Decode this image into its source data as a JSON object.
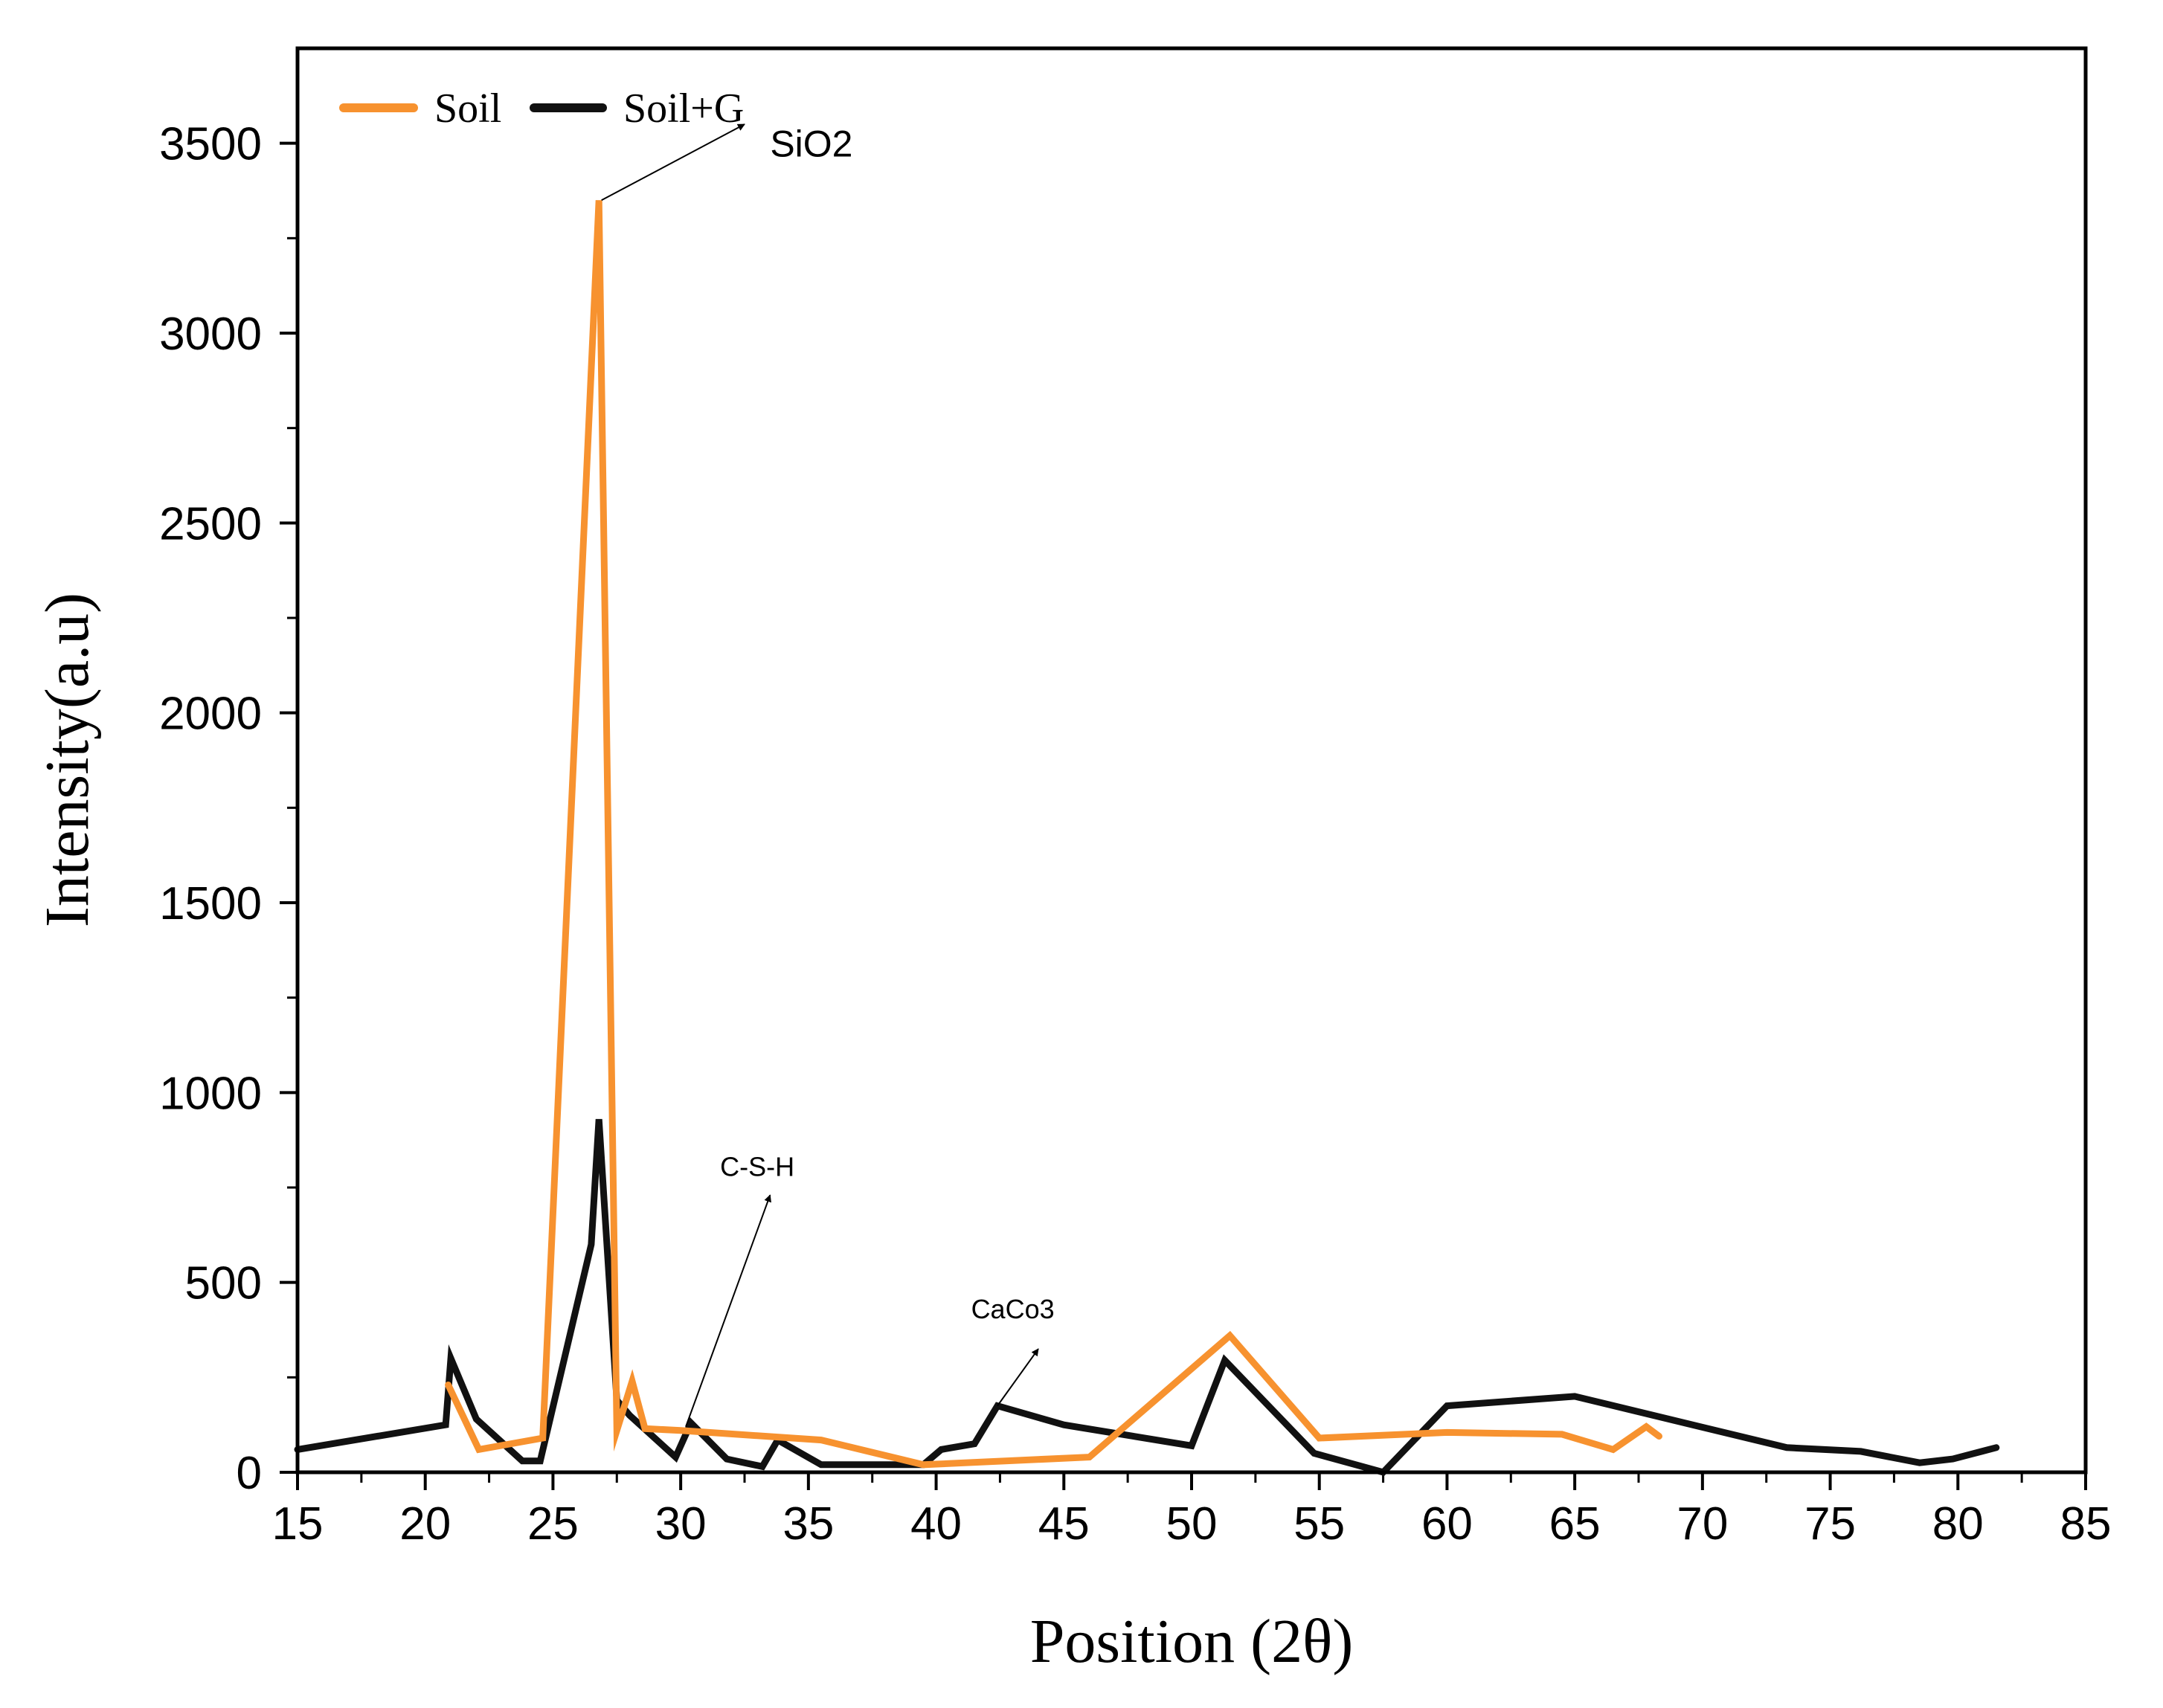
{
  "chart_data": {
    "type": "line",
    "title": "",
    "xlabel": "Position (2θ)",
    "ylabel": "Intensity(a.u)",
    "xlim": [
      15,
      85
    ],
    "ylim": [
      0,
      3750
    ],
    "xticks": [
      15,
      20,
      25,
      30,
      35,
      40,
      45,
      50,
      55,
      60,
      65,
      70,
      75,
      80,
      85
    ],
    "yticks": [
      0,
      500,
      1000,
      1500,
      2000,
      2500,
      3000,
      3500
    ],
    "legend": {
      "placement": "top-left"
    },
    "series": [
      {
        "name": "Soil",
        "color": "#f7922f",
        "x": [
          20.9,
          22.1,
          24.6,
          26.8,
          27.5,
          28.1,
          28.6,
          30.0,
          35.5,
          39.5,
          46.0,
          51.5,
          55.0,
          60.0,
          64.5,
          66.5,
          67.8,
          68.3
        ],
        "y": [
          230,
          60,
          90,
          3350,
          110,
          240,
          115,
          110,
          85,
          20,
          40,
          360,
          90,
          105,
          100,
          60,
          120,
          95
        ]
      },
      {
        "name": "Soil+G",
        "color": "#111111",
        "x": [
          15.0,
          20.8,
          21.0,
          22.0,
          23.8,
          24.5,
          26.5,
          26.8,
          27.5,
          28.0,
          29.8,
          30.4,
          31.8,
          33.2,
          33.8,
          35.5,
          39.5,
          40.2,
          41.5,
          42.4,
          45.0,
          50.0,
          51.3,
          54.8,
          57.5,
          60.0,
          65.0,
          73.3,
          76.2,
          78.5,
          79.8,
          81.5
        ],
        "y": [
          60,
          125,
          300,
          140,
          30,
          30,
          600,
          930,
          190,
          150,
          40,
          130,
          35,
          15,
          85,
          20,
          20,
          60,
          75,
          175,
          125,
          70,
          295,
          50,
          0,
          175,
          200,
          65,
          55,
          25,
          35,
          65
        ]
      }
    ],
    "annotations": [
      {
        "text": "SiO2",
        "x": 33.5,
        "y": 3465,
        "arrow_from": [
          26.9,
          3350
        ],
        "arrow_to": [
          32.5,
          3550
        ],
        "size": "large"
      },
      {
        "text": "C-S-H",
        "x": 33.0,
        "y": 780,
        "arrow_from": [
          30.2,
          120
        ],
        "arrow_to": [
          33.5,
          730
        ],
        "size": "small"
      },
      {
        "text": "CaCo3",
        "x": 43.0,
        "y": 405,
        "arrow_from": [
          42.4,
          175
        ],
        "arrow_to": [
          44.0,
          325
        ],
        "size": "small"
      }
    ]
  }
}
